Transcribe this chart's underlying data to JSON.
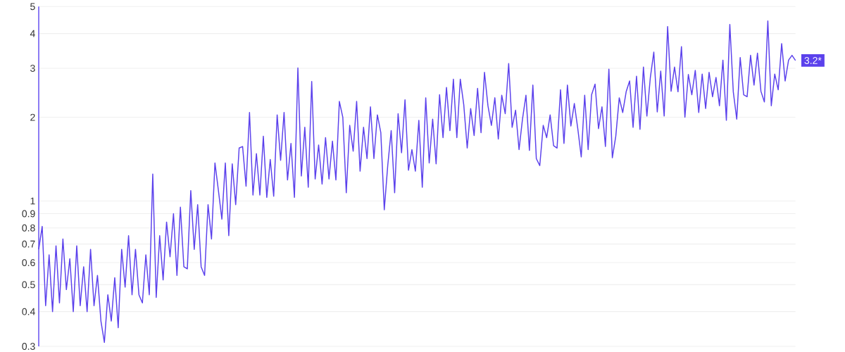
{
  "chart_data": {
    "type": "line",
    "color": "#5b41ec",
    "log": true,
    "grid": "y",
    "marker": "none",
    "line_style": "solid",
    "ylim": [
      0.3,
      5
    ],
    "yticks": [
      0.3,
      0.4,
      0.5,
      0.6,
      0.7,
      0.8,
      0.9,
      1,
      2,
      3,
      4,
      5
    ],
    "annotations": [
      "3.2*"
    ],
    "values": [
      0.67,
      0.81,
      0.42,
      0.64,
      0.4,
      0.69,
      0.43,
      0.73,
      0.48,
      0.62,
      0.4,
      0.69,
      0.42,
      0.58,
      0.4,
      0.67,
      0.42,
      0.54,
      0.37,
      0.31,
      0.46,
      0.37,
      0.53,
      0.35,
      0.67,
      0.49,
      0.75,
      0.46,
      0.67,
      0.46,
      0.43,
      0.64,
      0.46,
      1.25,
      0.45,
      0.75,
      0.52,
      0.84,
      0.63,
      0.9,
      0.54,
      0.95,
      0.58,
      0.57,
      1.09,
      0.67,
      0.97,
      0.58,
      0.54,
      0.97,
      0.73,
      1.37,
      1.09,
      0.86,
      1.37,
      0.75,
      1.36,
      0.97,
      1.55,
      1.57,
      1.13,
      2.08,
      1.05,
      1.48,
      1.05,
      1.71,
      1.03,
      1.41,
      1.04,
      2.04,
      1.4,
      2.08,
      1.19,
      1.61,
      1.03,
      3.01,
      1.23,
      1.84,
      1.12,
      2.69,
      1.2,
      1.59,
      1.15,
      1.69,
      1.2,
      1.64,
      1.19,
      2.28,
      2.0,
      1.07,
      1.87,
      1.51,
      2.28,
      1.28,
      1.84,
      1.42,
      2.18,
      1.42,
      2.04,
      1.76,
      0.93,
      1.34,
      1.79,
      1.07,
      2.06,
      1.49,
      2.31,
      1.29,
      1.53,
      1.28,
      1.95,
      1.12,
      2.35,
      1.37,
      1.97,
      1.36,
      2.41,
      1.69,
      2.56,
      1.79,
      2.74,
      1.69,
      2.74,
      2.22,
      1.55,
      2.15,
      1.72,
      2.54,
      1.76,
      2.9,
      2.2,
      1.87,
      2.35,
      1.67,
      2.4,
      2.06,
      3.12,
      1.84,
      2.12,
      1.53,
      1.97,
      2.4,
      1.52,
      2.61,
      1.42,
      1.34,
      1.87,
      1.69,
      2.04,
      1.58,
      1.55,
      2.51,
      1.61,
      2.61,
      1.86,
      2.24,
      1.82,
      1.44,
      2.4,
      1.53,
      2.41,
      2.63,
      1.82,
      2.18,
      1.57,
      2.98,
      1.43,
      1.71,
      2.35,
      2.08,
      2.47,
      2.7,
      1.84,
      2.81,
      1.81,
      3.03,
      2.02,
      2.78,
      3.43,
      2.09,
      2.93,
      2.02,
      4.24,
      2.48,
      3.03,
      2.47,
      3.59,
      2.0,
      2.85,
      2.41,
      2.95,
      2.08,
      2.86,
      2.15,
      2.9,
      2.37,
      2.78,
      2.2,
      3.21,
      1.95,
      4.31,
      2.47,
      1.97,
      3.28,
      2.41,
      2.37,
      3.34,
      2.61,
      3.4,
      2.48,
      2.27,
      4.44,
      2.2,
      2.86,
      2.51,
      3.68,
      2.7,
      3.21,
      3.34,
      3.2
    ]
  }
}
